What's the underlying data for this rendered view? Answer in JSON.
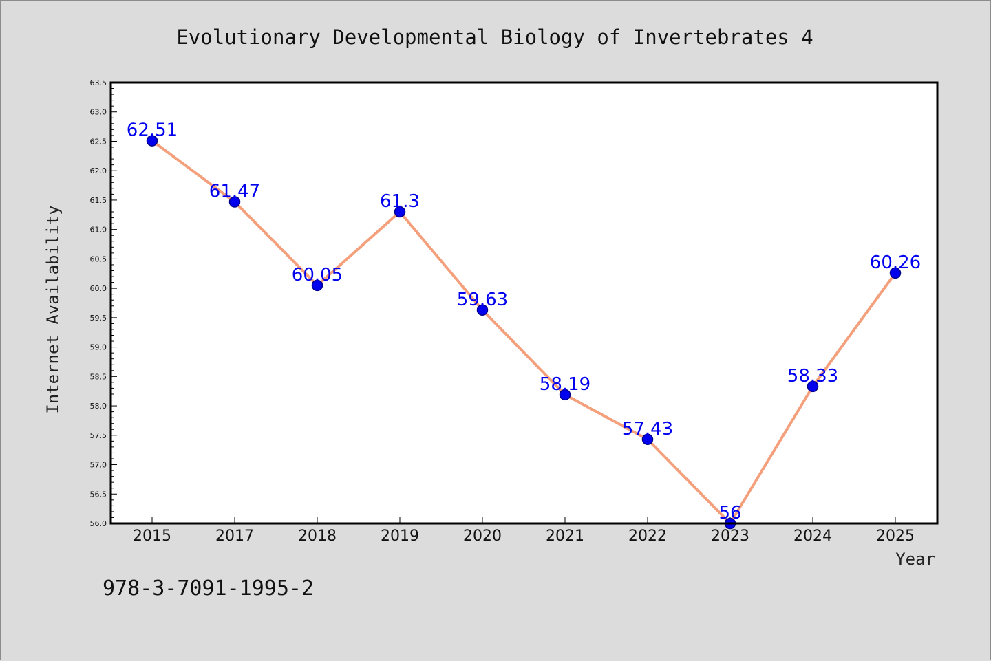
{
  "chart_data": {
    "type": "line",
    "title": "Evolutionary Developmental Biology of Invertebrates 4",
    "xlabel": "Year",
    "ylabel": "Internet Availability",
    "categories": [
      "2015",
      "2017",
      "2018",
      "2019",
      "2020",
      "2021",
      "2022",
      "2023",
      "2024",
      "2025"
    ],
    "series": [
      {
        "values": [
          62.51,
          61.47,
          60.05,
          61.3,
          59.63,
          58.19,
          57.43,
          56,
          58.33,
          60.26
        ],
        "data_labels": [
          "62.51",
          "61.47",
          "60.05",
          "61.3",
          "59.63",
          "58.19",
          "57.43",
          "56",
          "58.33",
          "60.26"
        ]
      }
    ],
    "ylim": [
      56.0,
      63.5
    ],
    "yticks": [
      "56.0",
      "56.5",
      "57.0",
      "57.5",
      "58.0",
      "58.5",
      "59.0",
      "59.5",
      "60.0",
      "60.5",
      "61.0",
      "61.5",
      "62.0",
      "62.5",
      "63.0",
      "63.5"
    ],
    "grid": false,
    "colors": {
      "line": "#f4a07c",
      "marker": "#0000ee",
      "data_label": "#0000ee",
      "plot_background": "#ffffff",
      "figure_background": "#dcdcdc"
    }
  },
  "footer": {
    "isbn": "978-3-7091-1995-2"
  }
}
